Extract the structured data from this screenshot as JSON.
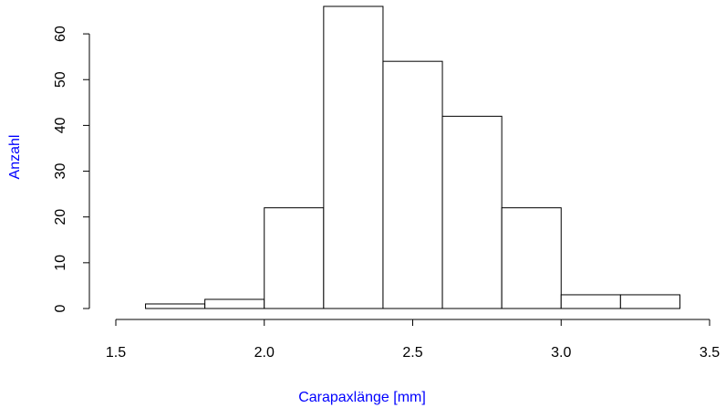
{
  "chart_data": {
    "type": "histogram",
    "xlabel": "Carapaxlänge [mm]",
    "ylabel": "Anzahl",
    "label_color": "#0000ff",
    "bins": [
      1.6,
      1.8,
      2.0,
      2.2,
      2.4,
      2.6,
      2.8,
      3.0,
      3.2,
      3.4
    ],
    "values": [
      1,
      2,
      22,
      66,
      54,
      42,
      22,
      3,
      3
    ],
    "color": "#ffffff",
    "edgecolor": "#000000",
    "xlim": [
      1.5,
      3.5
    ],
    "xticks": [
      1.5,
      {
        "value": 2,
        "label": "2.0"
      },
      2.5,
      {
        "value": 3,
        "label": "3.0"
      },
      3.5
    ],
    "ylim": [
      0,
      66
    ],
    "yticks": [
      0,
      10,
      20,
      30,
      40,
      50,
      60
    ]
  }
}
